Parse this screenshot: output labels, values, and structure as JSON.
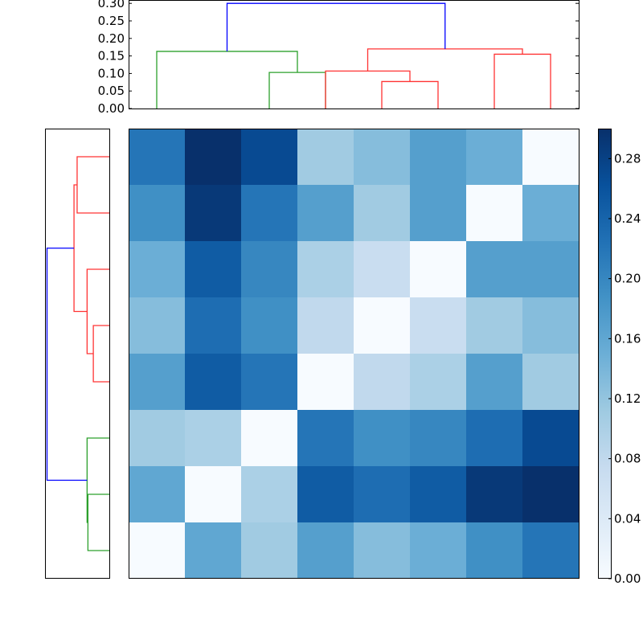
{
  "chart_data": [
    {
      "type": "dendrogram",
      "orientation": "top",
      "title": "",
      "ylabel": "",
      "ylim": [
        0.0,
        0.305
      ],
      "yticks": [
        "0.00",
        "0.05",
        "0.10",
        "0.15",
        "0.20",
        "0.25",
        "0.30"
      ],
      "leaf_positions": [
        5,
        15,
        25,
        35,
        45,
        55,
        65,
        75
      ],
      "xlim": [
        0,
        80
      ],
      "links": [
        {
          "x": [
            25,
            25,
            35,
            35
          ],
          "y": [
            0.0,
            0.103,
            0.103,
            0.0
          ],
          "color": "#2ca02c"
        },
        {
          "x": [
            5,
            5,
            30,
            30
          ],
          "y": [
            0.0,
            0.163,
            0.163,
            0.103
          ],
          "color": "#2ca02c"
        },
        {
          "x": [
            45,
            45,
            55,
            55
          ],
          "y": [
            0.0,
            0.077,
            0.077,
            0.0
          ],
          "color": "#ff3333"
        },
        {
          "x": [
            35,
            35,
            50,
            50
          ],
          "y": [
            0.0,
            0.107,
            0.107,
            0.077
          ],
          "color": "#ff3333"
        },
        {
          "x": [
            65,
            65,
            75,
            75
          ],
          "y": [
            0.0,
            0.155,
            0.155,
            0.0
          ],
          "color": "#ff3333"
        },
        {
          "x": [
            42.5,
            42.5,
            70,
            70
          ],
          "y": [
            0.107,
            0.17,
            0.17,
            0.155
          ],
          "color": "#ff3333"
        },
        {
          "x": [
            17.5,
            17.5,
            56.25,
            56.25
          ],
          "y": [
            0.163,
            0.3,
            0.3,
            0.17
          ],
          "color": "#0000ff"
        }
      ]
    },
    {
      "type": "dendrogram",
      "orientation": "left",
      "title": "",
      "xlim": [
        0.305,
        0.0
      ],
      "leaf_positions": [
        5,
        15,
        25,
        35,
        45,
        55,
        65,
        75
      ],
      "links": [
        {
          "y": [
            5,
            5,
            15,
            15
          ],
          "x": [
            0.0,
            0.103,
            0.103,
            0.0
          ],
          "color": "#2ca02c"
        },
        {
          "y": [
            10,
            10,
            25,
            25
          ],
          "x": [
            0.103,
            0.107,
            0.107,
            0.0
          ],
          "color": "#2ca02c"
        },
        {
          "y": [
            35,
            35,
            45,
            45
          ],
          "x": [
            0.0,
            0.077,
            0.077,
            0.0
          ],
          "color": "#ff3333"
        },
        {
          "y": [
            40,
            40,
            55,
            55
          ],
          "x": [
            0.077,
            0.107,
            0.107,
            0.0
          ],
          "color": "#ff3333"
        },
        {
          "y": [
            65,
            65,
            75,
            75
          ],
          "x": [
            0.0,
            0.155,
            0.155,
            0.0
          ],
          "color": "#ff3333"
        },
        {
          "y": [
            47.5,
            47.5,
            70,
            70
          ],
          "x": [
            0.107,
            0.17,
            0.17,
            0.155
          ],
          "color": "#ff3333"
        },
        {
          "y": [
            17.5,
            17.5,
            58.75,
            58.75
          ],
          "x": [
            0.107,
            0.3,
            0.3,
            0.17
          ],
          "color": "#0000ff"
        }
      ]
    },
    {
      "type": "heatmap",
      "colormap": "Blues",
      "vmin": 0.0,
      "vmax": 0.3,
      "rows": 8,
      "cols": 8,
      "values": [
        [
          0.22,
          0.3,
          0.27,
          0.11,
          0.13,
          0.17,
          0.15,
          0.0
        ],
        [
          0.19,
          0.29,
          0.22,
          0.17,
          0.11,
          0.17,
          0.0,
          0.15
        ],
        [
          0.15,
          0.25,
          0.2,
          0.1,
          0.07,
          0.0,
          0.17,
          0.17
        ],
        [
          0.13,
          0.23,
          0.19,
          0.08,
          0.0,
          0.07,
          0.11,
          0.13
        ],
        [
          0.17,
          0.25,
          0.22,
          0.0,
          0.08,
          0.1,
          0.17,
          0.11
        ],
        [
          0.11,
          0.1,
          0.0,
          0.22,
          0.19,
          0.2,
          0.23,
          0.27
        ],
        [
          0.16,
          0.0,
          0.1,
          0.25,
          0.23,
          0.25,
          0.29,
          0.3
        ],
        [
          0.0,
          0.16,
          0.11,
          0.17,
          0.13,
          0.15,
          0.19,
          0.22
        ]
      ]
    },
    {
      "type": "colorbar",
      "colormap": "Blues",
      "range": [
        0.0,
        0.3
      ],
      "ticks": [
        "0.00",
        "0.04",
        "0.08",
        "0.12",
        "0.16",
        "0.20",
        "0.24",
        "0.28"
      ]
    }
  ]
}
